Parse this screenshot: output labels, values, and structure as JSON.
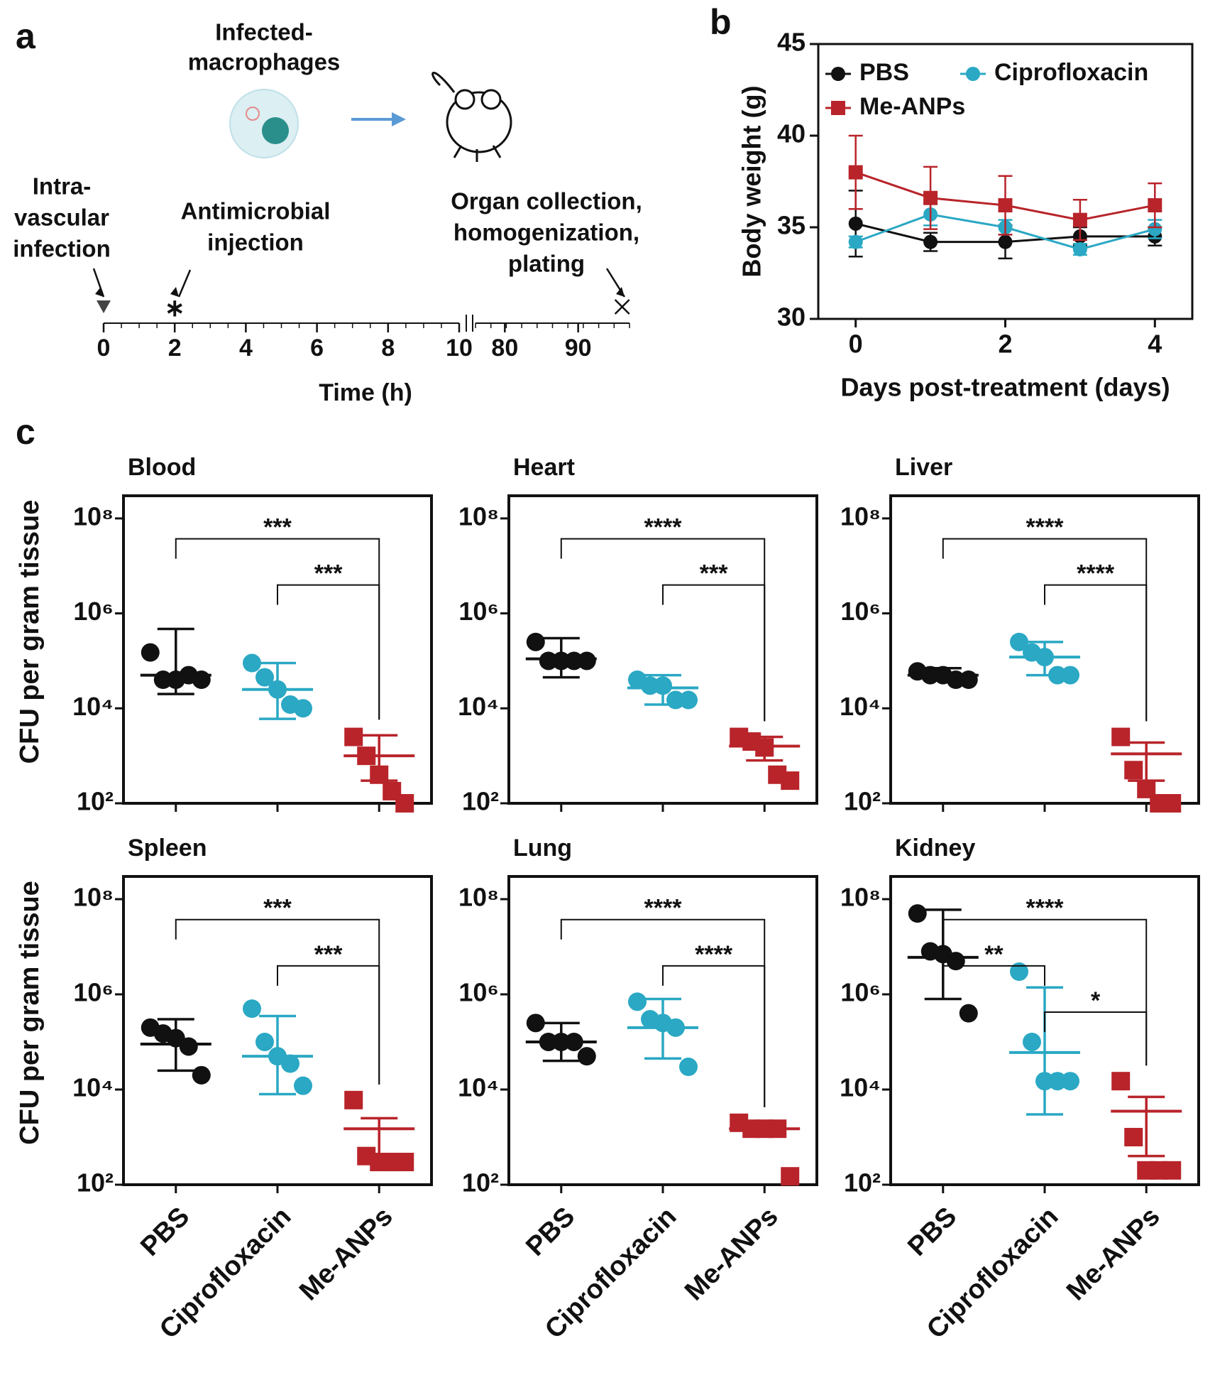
{
  "chart_data": [
    {
      "type": "timeline",
      "panel": "a",
      "icon_label_lines": [
        "Infected-",
        "macrophages"
      ],
      "xlabel": "Time (h)",
      "xlim": [
        0,
        97
      ],
      "axis_break": [
        10,
        76
      ],
      "xticks": [
        0,
        2,
        4,
        6,
        8,
        10,
        80,
        90
      ],
      "events": [
        {
          "time": 0,
          "marker": "triangle",
          "label_lines": [
            "Intra-",
            "vascular",
            "infection"
          ]
        },
        {
          "time": 2,
          "marker": "asterisk",
          "label_lines": [
            "Antimicrobial",
            "injection"
          ]
        },
        {
          "time": 96,
          "marker": "cross",
          "label_lines": [
            "Organ collection,",
            "homogenization,",
            "plating"
          ]
        }
      ]
    },
    {
      "type": "line",
      "panel": "b",
      "xlabel": "Days post-treatment (days)",
      "ylabel": "Body weight (g)",
      "x": [
        0,
        1,
        2,
        3,
        4
      ],
      "xlim": [
        -0.5,
        4.5
      ],
      "xticks": [
        0,
        2,
        4
      ],
      "ylim": [
        30,
        45
      ],
      "yticks": [
        30,
        35,
        40,
        45
      ],
      "legend": "upper left",
      "series": [
        {
          "name": "PBS",
          "color": "#111111",
          "marker": "circle",
          "values": [
            35.2,
            34.2,
            34.2,
            34.5,
            34.5
          ],
          "errors": [
            1.8,
            0.5,
            0.9,
            0.5,
            0.5
          ]
        },
        {
          "name": "Ciprofloxacin",
          "color": "#2aa8c4",
          "marker": "circle",
          "values": [
            34.2,
            35.7,
            35.0,
            33.8,
            34.9
          ],
          "errors": [
            0.3,
            0.6,
            0.4,
            0.3,
            0.5
          ]
        },
        {
          "name": "Me-ANPs",
          "color": "#b8242a",
          "marker": "square",
          "values": [
            38.0,
            36.6,
            36.2,
            35.4,
            36.2
          ],
          "errors": [
            2.0,
            1.7,
            1.6,
            1.1,
            1.2
          ]
        }
      ]
    },
    {
      "type": "dotplot",
      "panel": "c",
      "title": "Blood",
      "ylabel": "CFU per gram tissue",
      "log_scale": true,
      "ylim": [
        100,
        300000000
      ],
      "yticks": [
        {
          "value": 100,
          "label": "10²"
        },
        {
          "value": 10000,
          "label": "10⁴"
        },
        {
          "value": 1000000,
          "label": "10⁶"
        },
        {
          "value": 100000000,
          "label": "10⁸"
        }
      ],
      "groups": [
        {
          "color": "#111111",
          "marker": "circle",
          "points": [
            150000,
            40000,
            40000,
            50000,
            40000
          ],
          "mean": 50000,
          "error": [
            20000,
            470000
          ]
        },
        {
          "color": "#2aa8c4",
          "marker": "circle",
          "points": [
            90000,
            45000,
            25000,
            12000,
            10000
          ],
          "mean": 25000,
          "error": [
            6000,
            90000
          ]
        },
        {
          "color": "#b8242a",
          "marker": "square",
          "points": [
            2500,
            1000,
            400,
            180,
            100
          ],
          "mean": 1000,
          "error": [
            300,
            2700
          ]
        }
      ],
      "comparisons": [
        {
          "pair": [
            0,
            2
          ],
          "label": "***"
        },
        {
          "pair": [
            1,
            2
          ],
          "label": "***"
        }
      ]
    },
    {
      "type": "dotplot",
      "title": "Heart",
      "log_scale": true,
      "ylim": [
        100,
        300000000
      ],
      "yticks": [
        {
          "value": 100,
          "label": "10²"
        },
        {
          "value": 10000,
          "label": "10⁴"
        },
        {
          "value": 1000000,
          "label": "10⁶"
        },
        {
          "value": 100000000,
          "label": "10⁸"
        }
      ],
      "groups": [
        {
          "color": "#111111",
          "marker": "circle",
          "points": [
            250000,
            100000,
            100000,
            100000,
            100000
          ],
          "mean": 110000,
          "error": [
            45000,
            300000
          ]
        },
        {
          "color": "#2aa8c4",
          "marker": "circle",
          "points": [
            40000,
            30000,
            30000,
            15000,
            15000
          ],
          "mean": 27000,
          "error": [
            12000,
            50000
          ]
        },
        {
          "color": "#b8242a",
          "marker": "square",
          "points": [
            2500,
            2000,
            1500,
            400,
            300
          ],
          "mean": 1600,
          "error": [
            800,
            2500
          ]
        }
      ],
      "comparisons": [
        {
          "pair": [
            0,
            2
          ],
          "label": "****"
        },
        {
          "pair": [
            1,
            2
          ],
          "label": "***"
        }
      ]
    },
    {
      "type": "dotplot",
      "title": "Liver",
      "log_scale": true,
      "ylim": [
        100,
        300000000
      ],
      "yticks": [
        {
          "value": 100,
          "label": "10²"
        },
        {
          "value": 10000,
          "label": "10⁴"
        },
        {
          "value": 1000000,
          "label": "10⁶"
        },
        {
          "value": 100000000,
          "label": "10⁸"
        }
      ],
      "groups": [
        {
          "color": "#111111",
          "marker": "circle",
          "points": [
            60000,
            50000,
            50000,
            40000,
            40000
          ],
          "mean": 50000,
          "error": [
            40000,
            70000
          ]
        },
        {
          "color": "#2aa8c4",
          "marker": "circle",
          "points": [
            250000,
            150000,
            120000,
            50000,
            50000
          ],
          "mean": 120000,
          "error": [
            50000,
            250000
          ]
        },
        {
          "color": "#b8242a",
          "marker": "square",
          "points": [
            2500,
            500,
            200,
            100,
            100
          ],
          "mean": 1100,
          "error": [
            300,
            1900
          ]
        }
      ],
      "comparisons": [
        {
          "pair": [
            0,
            2
          ],
          "label": "****"
        },
        {
          "pair": [
            1,
            2
          ],
          "label": "****"
        }
      ]
    },
    {
      "type": "dotplot",
      "title": "Spleen",
      "ylabel": "CFU per gram tissue",
      "log_scale": true,
      "ylim": [
        100,
        300000000
      ],
      "yticks": [
        {
          "value": 100,
          "label": "10²"
        },
        {
          "value": 10000,
          "label": "10⁴"
        },
        {
          "value": 1000000,
          "label": "10⁶"
        },
        {
          "value": 100000000,
          "label": "10⁸"
        }
      ],
      "categories": [
        "PBS",
        "Ciprofloxacin",
        "Me-ANPs"
      ],
      "groups": [
        {
          "color": "#111111",
          "marker": "circle",
          "points": [
            200000,
            150000,
            120000,
            80000,
            20000
          ],
          "mean": 90000,
          "error": [
            25000,
            300000
          ]
        },
        {
          "color": "#2aa8c4",
          "marker": "circle",
          "points": [
            500000,
            100000,
            50000,
            35000,
            12000
          ],
          "mean": 50000,
          "error": [
            8000,
            350000
          ]
        },
        {
          "color": "#b8242a",
          "marker": "square",
          "points": [
            6000,
            400,
            300,
            300,
            300
          ],
          "mean": 1500,
          "error": [
            400,
            2500
          ]
        }
      ],
      "comparisons": [
        {
          "pair": [
            0,
            2
          ],
          "label": "***"
        },
        {
          "pair": [
            1,
            2
          ],
          "label": "***"
        }
      ]
    },
    {
      "type": "dotplot",
      "title": "Lung",
      "log_scale": true,
      "ylim": [
        100,
        300000000
      ],
      "yticks": [
        {
          "value": 100,
          "label": "10²"
        },
        {
          "value": 10000,
          "label": "10⁴"
        },
        {
          "value": 1000000,
          "label": "10⁶"
        },
        {
          "value": 100000000,
          "label": "10⁸"
        }
      ],
      "categories": [
        "PBS",
        "Ciprofloxacin",
        "Me-ANPs"
      ],
      "groups": [
        {
          "color": "#111111",
          "marker": "circle",
          "points": [
            250000,
            100000,
            100000,
            100000,
            50000
          ],
          "mean": 100000,
          "error": [
            40000,
            250000
          ]
        },
        {
          "color": "#2aa8c4",
          "marker": "circle",
          "points": [
            700000,
            300000,
            250000,
            200000,
            30000
          ],
          "mean": 200000,
          "error": [
            45000,
            800000
          ]
        },
        {
          "color": "#b8242a",
          "marker": "square",
          "points": [
            2000,
            1500,
            1500,
            1500,
            150
          ],
          "mean": 1500,
          "error": [
            1300,
            2000
          ]
        }
      ],
      "comparisons": [
        {
          "pair": [
            0,
            2
          ],
          "label": "****"
        },
        {
          "pair": [
            1,
            2
          ],
          "label": "****"
        }
      ]
    },
    {
      "type": "dotplot",
      "title": "Kidney",
      "log_scale": true,
      "ylim": [
        100,
        300000000
      ],
      "yticks": [
        {
          "value": 100,
          "label": "10²"
        },
        {
          "value": 10000,
          "label": "10⁴"
        },
        {
          "value": 1000000,
          "label": "10⁶"
        },
        {
          "value": 100000000,
          "label": "10⁸"
        }
      ],
      "categories": [
        "PBS",
        "Ciprofloxacin",
        "Me-ANPs"
      ],
      "groups": [
        {
          "color": "#111111",
          "marker": "circle",
          "points": [
            50000000,
            8000000,
            7000000,
            5000000,
            400000
          ],
          "mean": 6000000,
          "error": [
            800000,
            60000000
          ]
        },
        {
          "color": "#2aa8c4",
          "marker": "circle",
          "points": [
            3000000,
            100000,
            15000,
            15000,
            15000
          ],
          "mean": 60000,
          "error": [
            3000,
            1400000
          ]
        },
        {
          "color": "#b8242a",
          "marker": "square",
          "points": [
            15000,
            1000,
            200,
            200,
            200
          ],
          "mean": 3500,
          "error": [
            400,
            7000
          ]
        }
      ],
      "comparisons": [
        {
          "pair": [
            0,
            2
          ],
          "label": "****"
        },
        {
          "pair": [
            0,
            1
          ],
          "label": "**"
        },
        {
          "pair": [
            1,
            2
          ],
          "label": "*"
        }
      ]
    }
  ]
}
